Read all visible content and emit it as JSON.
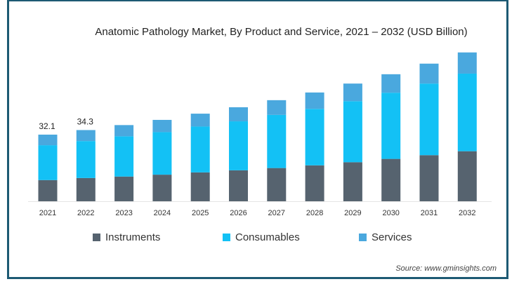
{
  "chart_data": {
    "type": "bar",
    "stacked": true,
    "title": "Anatomic Pathology Market, By Product and Service, 2021 – 2032 (USD Billion)",
    "xlabel": "",
    "ylabel": "",
    "categories": [
      "2021",
      "2022",
      "2023",
      "2024",
      "2025",
      "2026",
      "2027",
      "2028",
      "2029",
      "2030",
      "2031",
      "2032"
    ],
    "series": [
      {
        "name": "Instruments",
        "color": "#56636f",
        "values": [
          10.2,
          11.2,
          11.9,
          12.8,
          13.9,
          14.9,
          16.0,
          17.3,
          18.8,
          20.4,
          22.2,
          24.1
        ]
      },
      {
        "name": "Consumables",
        "color": "#13c1f5",
        "values": [
          16.8,
          17.8,
          19.4,
          20.5,
          22.1,
          23.6,
          25.6,
          27.2,
          29.4,
          31.9,
          34.5,
          37.4
        ]
      },
      {
        "name": "Services",
        "color": "#4aa8de",
        "values": [
          5.1,
          5.3,
          5.4,
          5.9,
          6.2,
          6.8,
          7.1,
          7.9,
          8.5,
          8.9,
          9.6,
          10.2
        ]
      }
    ],
    "data_labels": [
      {
        "category": "2021",
        "text": "32.1"
      },
      {
        "category": "2022",
        "text": "34.3"
      }
    ],
    "ylim": [
      0,
      75
    ],
    "grid": false,
    "legend_position": "bottom"
  },
  "source": "Source: www.gminsights.com"
}
